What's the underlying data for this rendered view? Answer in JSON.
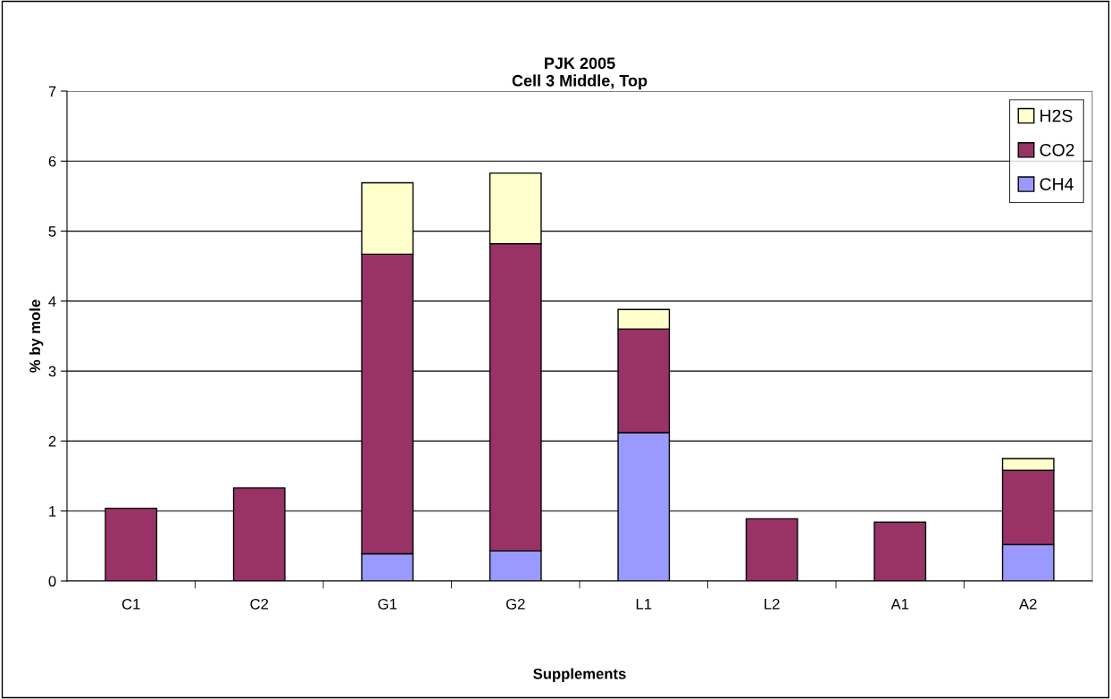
{
  "chart_data": {
    "type": "bar",
    "title": "PJK 2005\nCell 3 Middle, Top",
    "xlabel": "Supplements",
    "ylabel": "% by mole",
    "categories": [
      "C1",
      "C2",
      "G1",
      "G2",
      "L1",
      "L2",
      "A1",
      "A2"
    ],
    "stacked": true,
    "series": [
      {
        "name": "CH4",
        "color": "#9999ff",
        "values": [
          null,
          null,
          0.39,
          0.43,
          2.12,
          null,
          null,
          0.52
        ]
      },
      {
        "name": "CO2",
        "color": "#993366",
        "values": [
          1.04,
          1.33,
          4.28,
          4.39,
          1.48,
          0.89,
          0.84,
          1.06
        ]
      },
      {
        "name": "H2S",
        "color": "#ffffcc",
        "values": [
          null,
          null,
          1.02,
          1.01,
          0.28,
          null,
          null,
          0.17
        ]
      }
    ],
    "ylim": [
      0,
      7
    ],
    "yticks": [
      0,
      1,
      2,
      3,
      4,
      5,
      6,
      7
    ],
    "grid": "y",
    "legend": "top right"
  }
}
